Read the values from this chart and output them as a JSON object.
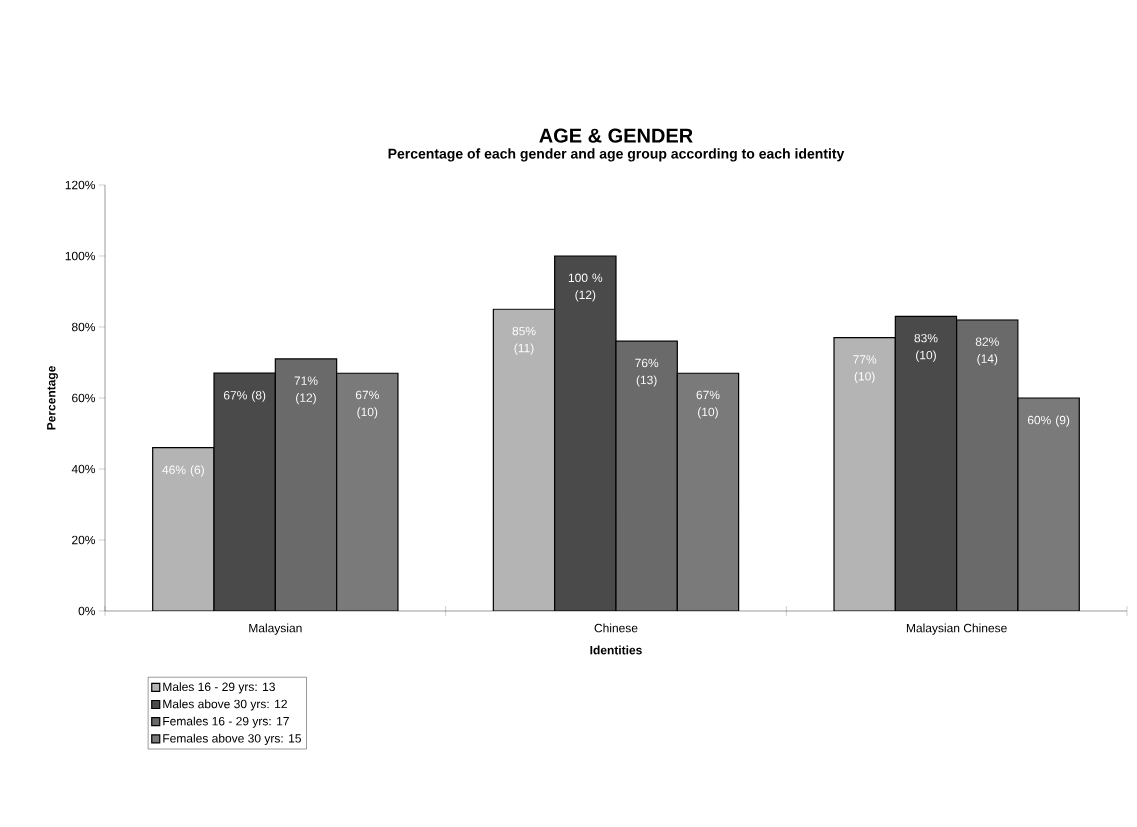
{
  "chart_data": {
    "type": "bar",
    "title": "AGE & GENDER",
    "subtitle": "Percentage of each gender and age group according to each identity",
    "xlabel": "Identities",
    "ylabel": "Percentage",
    "categories": [
      "Malaysian",
      "Chinese",
      "Malaysian Chinese"
    ],
    "series": [
      {
        "name": "Males 16 - 29 yrs: 13",
        "color": "#b4b4b4",
        "values": [
          46,
          85,
          77
        ],
        "value_labels": [
          "46% (6)",
          "85% (11)",
          "77% (10)"
        ]
      },
      {
        "name": "Males above 30 yrs: 12",
        "color": "#4a4a4a",
        "values": [
          67,
          100,
          83
        ],
        "value_labels": [
          "67% (8)",
          "100 % (12)",
          "83% (10)"
        ]
      },
      {
        "name": "Females 16 - 29 yrs: 17",
        "color": "#6a6a6a",
        "values": [
          71,
          76,
          82
        ],
        "value_labels": [
          "71% (12)",
          "76% (13)",
          "82% (14)"
        ]
      },
      {
        "name": "Females above 30 yrs: 15",
        "color": "#7a7a7a",
        "values": [
          67,
          67,
          60
        ],
        "value_labels": [
          "67% (10)",
          "67% (10)",
          "60% (9)"
        ]
      }
    ],
    "ylim": [
      0,
      120
    ],
    "yticks": [
      {
        "value": 0,
        "label": "0%"
      },
      {
        "value": 20,
        "label": "20%"
      },
      {
        "value": 40,
        "label": "40%"
      },
      {
        "value": 60,
        "label": "60%"
      },
      {
        "value": 80,
        "label": "80%"
      },
      {
        "value": 100,
        "label": "100%"
      },
      {
        "value": 120,
        "label": "120%"
      }
    ],
    "grid": false,
    "legend": "bottom left"
  }
}
